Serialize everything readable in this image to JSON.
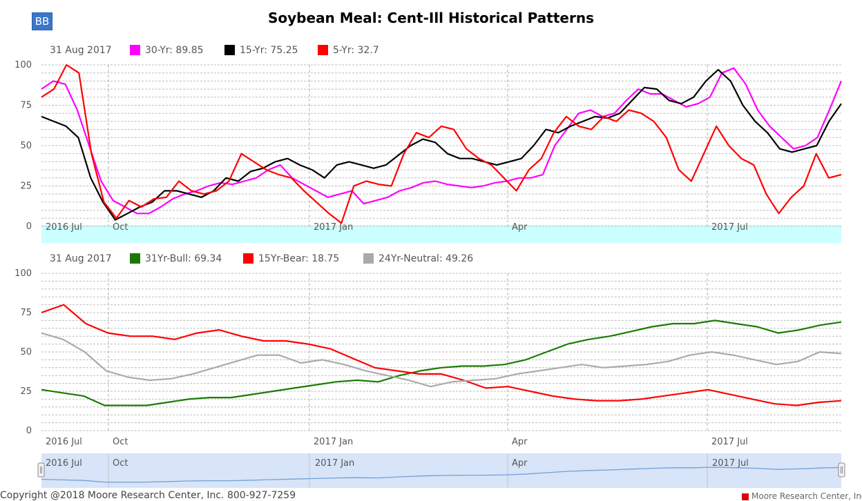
{
  "header": {
    "logo_label": "BB",
    "title": "Soybean Meal: Cent-Ill Historical Patterns"
  },
  "footer": {
    "copyright": "Copyright @2018 Moore Research Center, Inc. 800-927-7259",
    "brand": "Moore Research Center, Inc."
  },
  "colors": {
    "magenta": "#ff00ff",
    "black": "#000000",
    "red": "#ff0000",
    "green": "#1a7a00",
    "gray": "#aaaaaa",
    "band": "#ccffff",
    "navigator_fill": "#d8e4f7",
    "navigator_line": "#6fa0dd"
  },
  "chart_data": [
    {
      "type": "line",
      "legend_date": "31 Aug 2017",
      "legend_placement": "top-left",
      "ylim": [
        0,
        100
      ],
      "y_ticks": [
        "0",
        "25",
        "50",
        "75",
        "100"
      ],
      "x_tick_labels": [
        "2016 Jul",
        "Oct",
        "2017 Jan",
        "Apr",
        "2017 Jul"
      ],
      "grid": "dashed",
      "series": [
        {
          "name": "30-Yr",
          "legend_label": "30-Yr: 89.85",
          "color": "#ff00ff",
          "values": [
            85,
            90,
            88,
            72,
            50,
            28,
            16,
            12,
            8,
            8,
            12,
            17,
            20,
            22,
            25,
            27,
            26,
            28,
            30,
            35,
            38,
            30,
            26,
            22,
            18,
            20,
            22,
            14,
            16,
            18,
            22,
            24,
            27,
            28,
            26,
            25,
            24,
            25,
            27,
            28,
            30,
            30,
            32,
            50,
            60,
            70,
            72,
            68,
            70,
            78,
            85,
            82,
            82,
            78,
            74,
            76,
            80,
            95,
            98,
            88,
            72,
            62,
            55,
            48,
            50,
            55,
            72,
            90
          ]
        },
        {
          "name": "15-Yr",
          "legend_label": "15-Yr: 75.25",
          "color": "#000000",
          "values": [
            68,
            65,
            62,
            55,
            30,
            15,
            4,
            8,
            12,
            15,
            22,
            22,
            20,
            18,
            22,
            30,
            28,
            34,
            36,
            40,
            42,
            38,
            35,
            30,
            38,
            40,
            38,
            36,
            38,
            44,
            50,
            54,
            52,
            45,
            42,
            42,
            40,
            38,
            40,
            42,
            50,
            60,
            58,
            62,
            65,
            68,
            67,
            70,
            78,
            86,
            85,
            78,
            76,
            80,
            90,
            97,
            90,
            75,
            65,
            58,
            48,
            46,
            48,
            50,
            65,
            76
          ]
        },
        {
          "name": "5-Yr",
          "legend_label": "5-Yr: 32.7",
          "color": "#ff0000",
          "values": [
            80,
            85,
            100,
            95,
            45,
            15,
            5,
            16,
            12,
            17,
            18,
            28,
            22,
            20,
            22,
            28,
            45,
            40,
            35,
            32,
            30,
            22,
            15,
            8,
            2,
            25,
            28,
            26,
            25,
            45,
            58,
            55,
            62,
            60,
            48,
            42,
            38,
            30,
            22,
            35,
            42,
            58,
            68,
            62,
            60,
            68,
            65,
            72,
            70,
            65,
            55,
            35,
            28,
            45,
            62,
            50,
            42,
            38,
            20,
            8,
            18,
            25,
            45,
            30,
            32
          ]
        }
      ]
    },
    {
      "type": "line",
      "legend_date": "31 Aug 2017",
      "legend_placement": "top-left",
      "ylim": [
        0,
        100
      ],
      "y_ticks": [
        "0",
        "25",
        "50",
        "75",
        "100"
      ],
      "x_tick_labels": [
        "2016 Jul",
        "Oct",
        "2017 Jan",
        "Apr",
        "2017 Jul"
      ],
      "grid": "dashed",
      "series": [
        {
          "name": "31Yr-Bull",
          "legend_label": "31Yr-Bull: 69.34",
          "color": "#1a7a00",
          "values": [
            26,
            24,
            22,
            16,
            16,
            16,
            18,
            20,
            21,
            21,
            23,
            25,
            27,
            29,
            31,
            32,
            31,
            35,
            38,
            40,
            41,
            41,
            42,
            45,
            50,
            55,
            58,
            60,
            63,
            66,
            68,
            68,
            70,
            68,
            66,
            62,
            64,
            67,
            69
          ]
        },
        {
          "name": "15Yr-Bear",
          "legend_label": "15Yr-Bear: 18.75",
          "color": "#ff0000",
          "values": [
            75,
            80,
            68,
            62,
            60,
            60,
            58,
            62,
            64,
            60,
            57,
            57,
            55,
            52,
            46,
            40,
            38,
            36,
            36,
            32,
            27,
            28,
            25,
            22,
            20,
            19,
            19,
            20,
            22,
            24,
            26,
            23,
            20,
            17,
            16,
            18,
            19
          ]
        },
        {
          "name": "24Yr-Neutral",
          "legend_label": "24Yr-Neutral: 49.26",
          "color": "#aaaaaa",
          "values": [
            62,
            58,
            50,
            38,
            34,
            32,
            33,
            36,
            40,
            44,
            48,
            48,
            43,
            45,
            42,
            38,
            35,
            32,
            28,
            31,
            32,
            33,
            36,
            38,
            40,
            42,
            40,
            41,
            42,
            44,
            48,
            50,
            48,
            45,
            42,
            44,
            50,
            49
          ]
        }
      ]
    }
  ]
}
